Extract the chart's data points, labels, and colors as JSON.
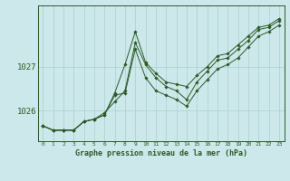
{
  "title": "Graphe pression niveau de la mer (hPa)",
  "background_color": "#cce8ea",
  "grid_color": "#aacfd4",
  "line_color": "#2d5a27",
  "marker_color": "#2d5a27",
  "xlim": [
    -0.5,
    23.5
  ],
  "ylim": [
    1025.3,
    1028.4
  ],
  "yticks": [
    1026,
    1027
  ],
  "xticks": [
    0,
    1,
    2,
    3,
    4,
    5,
    6,
    7,
    8,
    9,
    10,
    11,
    12,
    13,
    14,
    15,
    16,
    17,
    18,
    19,
    20,
    21,
    22,
    23
  ],
  "series": [
    {
      "x": [
        0,
        1,
        2,
        3,
        4,
        5,
        6,
        7,
        8,
        9,
        10,
        11,
        12,
        13,
        14,
        15,
        16,
        17,
        18,
        19,
        20,
        21,
        22,
        23
      ],
      "y": [
        1025.65,
        1025.55,
        1025.55,
        1025.55,
        1025.75,
        1025.8,
        1025.9,
        1026.4,
        1027.05,
        1027.8,
        1027.1,
        1026.85,
        1026.65,
        1026.6,
        1026.55,
        1026.8,
        1027.0,
        1027.25,
        1027.3,
        1027.5,
        1027.7,
        1027.9,
        1027.95,
        1028.1
      ]
    },
    {
      "x": [
        0,
        1,
        2,
        3,
        4,
        5,
        6,
        7,
        8,
        9,
        10,
        11,
        12,
        13,
        14,
        15,
        16,
        17,
        18,
        19,
        20,
        21,
        22,
        23
      ],
      "y": [
        1025.65,
        1025.55,
        1025.55,
        1025.55,
        1025.75,
        1025.8,
        1025.95,
        1026.2,
        1026.45,
        1027.55,
        1027.05,
        1026.75,
        1026.55,
        1026.45,
        1026.25,
        1026.65,
        1026.9,
        1027.15,
        1027.2,
        1027.4,
        1027.6,
        1027.85,
        1027.9,
        1028.05
      ]
    },
    {
      "x": [
        0,
        1,
        2,
        3,
        4,
        5,
        6,
        7,
        8,
        9,
        10,
        11,
        12,
        13,
        14,
        15,
        16,
        17,
        18,
        19,
        20,
        21,
        22,
        23
      ],
      "y": [
        1025.65,
        1025.55,
        1025.55,
        1025.55,
        1025.75,
        1025.8,
        1025.9,
        1026.35,
        1026.4,
        1027.4,
        1026.75,
        1026.45,
        1026.35,
        1026.25,
        1026.1,
        1026.45,
        1026.7,
        1026.95,
        1027.05,
        1027.2,
        1027.45,
        1027.7,
        1027.8,
        1027.95
      ]
    }
  ]
}
